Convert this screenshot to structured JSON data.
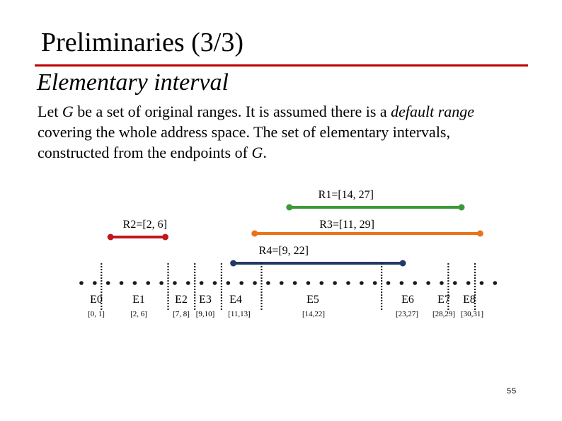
{
  "title": "Preliminaries (3/3)",
  "subtitle": "Elementary interval",
  "body": {
    "line1": [
      {
        "text": "Let ",
        "italic": false
      },
      {
        "text": "G",
        "italic": true
      },
      {
        "text": " be a set of original ranges. It is assumed there is a ",
        "italic": false
      },
      {
        "text": "default range",
        "italic": true
      }
    ],
    "line2": [
      {
        "text": "covering the whole address space. The set of elementary intervals,",
        "italic": false
      }
    ],
    "line3": [
      {
        "text": "constructed from the endpoints of ",
        "italic": false
      },
      {
        "text": "G",
        "italic": true
      },
      {
        "text": ".",
        "italic": false
      }
    ]
  },
  "colors": {
    "title_rule": "#c00000",
    "R1": "#3a9a3a",
    "R2": "#c0161c",
    "R3": "#e8731b",
    "R4": "#1f3a64"
  },
  "ranges": [
    {
      "label": "R1=[14, 27]",
      "start": 14,
      "end": 27,
      "color_key": "R1"
    },
    {
      "label": "R2=[2, 6]",
      "start": 2,
      "end": 6,
      "color_key": "R2"
    },
    {
      "label": "R3=[11, 29]",
      "start": 11,
      "end": 29,
      "color_key": "R3"
    },
    {
      "label": "R4=[9, 22]",
      "start": 9,
      "end": 22,
      "color_key": "R4"
    }
  ],
  "address_space": {
    "min": 0,
    "max": 31
  },
  "elementary_intervals": [
    {
      "name": "E0",
      "interval": "[0, 1]",
      "start": 0,
      "end": 1
    },
    {
      "name": "E1",
      "interval": "[2, 6]",
      "start": 2,
      "end": 6
    },
    {
      "name": "E2",
      "interval": "[7, 8]",
      "start": 7,
      "end": 8
    },
    {
      "name": "E3",
      "interval": "[9,10]",
      "start": 9,
      "end": 10
    },
    {
      "name": "E4",
      "interval": "[11,13]",
      "start": 11,
      "end": 13
    },
    {
      "name": "E5",
      "interval": "[14,22]",
      "start": 14,
      "end": 22
    },
    {
      "name": "E6",
      "interval": "[23,27]",
      "start": 23,
      "end": 27
    },
    {
      "name": "E7",
      "interval": "[28,29]",
      "start": 28,
      "end": 29
    },
    {
      "name": "E8",
      "interval": "[30,31]",
      "start": 30,
      "end": 31
    }
  ],
  "page_number": "55"
}
